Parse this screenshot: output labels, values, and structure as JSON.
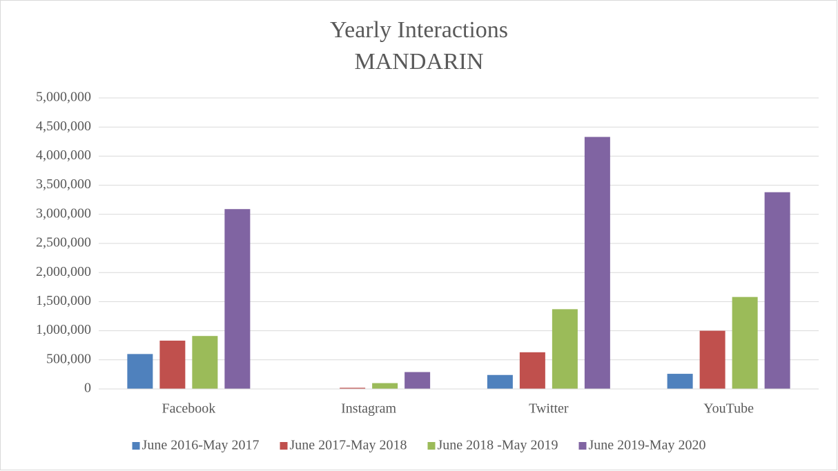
{
  "chart_data": {
    "type": "bar",
    "title": "Yearly Interactions",
    "subtitle": "MANDARIN",
    "categories": [
      "Facebook",
      "Instagram",
      "Twitter",
      "YouTube"
    ],
    "series": [
      {
        "name": "June 2016-May 2017",
        "color": "#4f81bd",
        "values": [
          600000,
          5000,
          240000,
          260000
        ]
      },
      {
        "name": "June 2017-May 2018",
        "color": "#c0504d",
        "values": [
          830000,
          20000,
          630000,
          1000000
        ]
      },
      {
        "name": "June 2018 -May 2019",
        "color": "#9bbb59",
        "values": [
          910000,
          100000,
          1370000,
          1580000
        ]
      },
      {
        "name": "June 2019-May 2020",
        "color": "#8064a2",
        "values": [
          3090000,
          290000,
          4330000,
          3380000
        ]
      }
    ],
    "ylim": [
      0,
      5000000
    ],
    "yticks": [
      0,
      {
        "value": 500000,
        "label": "500,000"
      },
      {
        "value": 1000000,
        "label": "1,000,000"
      },
      {
        "value": 1500000,
        "label": "1,500,000"
      },
      {
        "value": 2000000,
        "label": "2,000,000"
      },
      {
        "value": 2500000,
        "label": "2,500,000"
      },
      {
        "value": 3000000,
        "label": "3,000,000"
      },
      {
        "value": 3500000,
        "label": "3,500,000"
      },
      {
        "value": 4000000,
        "label": "4,000,000"
      },
      {
        "value": 4500000,
        "label": "4,500,000"
      },
      {
        "value": 5000000,
        "label": "5,000,000"
      }
    ],
    "grid": true,
    "legend": "bottom"
  }
}
